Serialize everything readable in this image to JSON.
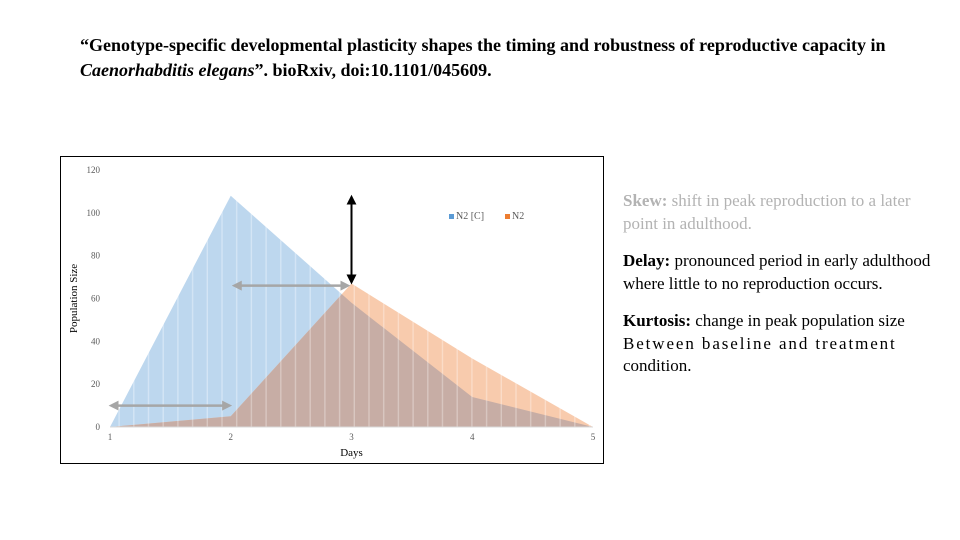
{
  "citation": {
    "part1": "“Genotype-specific developmental plasticity shapes the timing and robustness of reproductive capacity in ",
    "species": "Caenorhabditis elegans",
    "part2": "”. bioRxiv, doi:10.1101/045609."
  },
  "chart_data": {
    "type": "area",
    "xlabel": "Days",
    "ylabel": "Population Size",
    "xlim": [
      1,
      5
    ],
    "ylim": [
      0,
      120
    ],
    "x_ticks": [
      "1",
      "2",
      "3",
      "4",
      "5"
    ],
    "y_ticks": [
      "0",
      "20",
      "40",
      "60",
      "80",
      "100",
      "120"
    ],
    "legend_position": "top-right",
    "grid": false,
    "series": [
      {
        "name": "N2 [C]",
        "color": "#bdd7ee",
        "points": [
          [
            1,
            0
          ],
          [
            2,
            108
          ],
          [
            3,
            58
          ],
          [
            4,
            14
          ],
          [
            5,
            0
          ]
        ]
      },
      {
        "name": "N2",
        "color": "#f8cbad",
        "points": [
          [
            1,
            0
          ],
          [
            2,
            5
          ],
          [
            3,
            67
          ],
          [
            4,
            32
          ],
          [
            5,
            0
          ]
        ]
      }
    ],
    "annotations": {
      "peak_arrow": {
        "x": 3,
        "from_y": 108,
        "to_y": 67
      },
      "skew_arrow": {
        "y": 66,
        "from_x": 2.05,
        "to_x": 2.95
      },
      "delay_arrow": {
        "y": 10,
        "from_x": 1.03,
        "to_x": 1.97
      }
    }
  },
  "notes": {
    "skew": {
      "term": "Skew:",
      "text": " shift in peak reproduction to a later point in adulthood."
    },
    "delay": {
      "term": "Delay:",
      "text": " pronounced period in early adulthood where little to no reproduction occurs."
    },
    "kurtosis": {
      "term": "Kurtosis:",
      "text1": " change in peak population size",
      "text2": "Between baseline and treatment",
      "text3": "condition."
    }
  }
}
